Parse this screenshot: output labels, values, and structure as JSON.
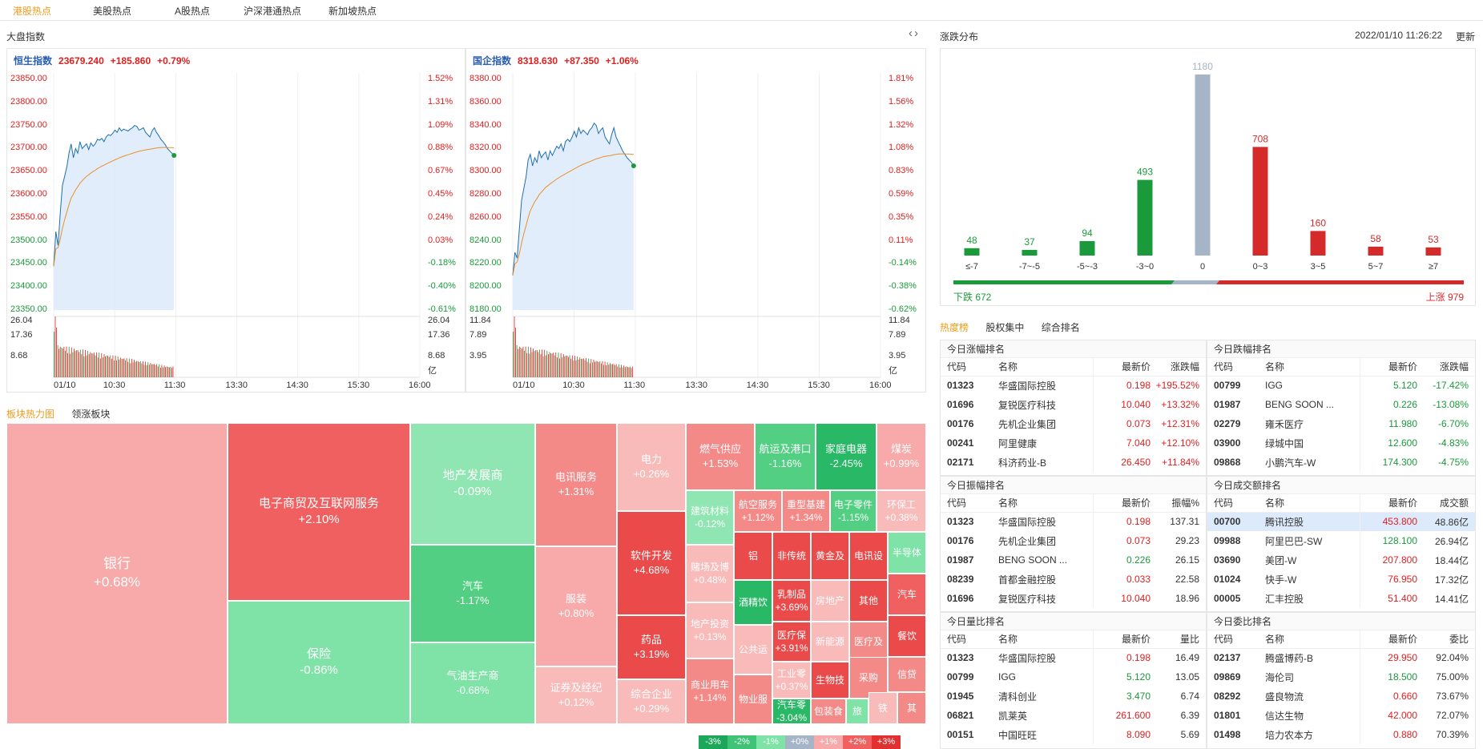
{
  "tabs": [
    "港股热点",
    "美股热点",
    "A股热点",
    "沪深港通热点",
    "新加坡热点"
  ],
  "market_title": "大盘指数",
  "indices": [
    {
      "name": "恒生指数",
      "value": "23679.240",
      "change": "+185.860",
      "pct": "+0.79%",
      "y_left": [
        "23850.00",
        "23800.00",
        "23750.00",
        "23700.00",
        "23650.00",
        "23600.00",
        "23550.00",
        "23500.00",
        "23450.00",
        "23400.00",
        "23350.00"
      ],
      "y_right": [
        "1.52%",
        "1.31%",
        "1.09%",
        "0.88%",
        "0.67%",
        "0.45%",
        "0.24%",
        "0.03%",
        "-0.18%",
        "-0.40%",
        "-0.61%"
      ],
      "vol_left": [
        "26.04",
        "17.36",
        "8.68"
      ],
      "vol_right": [
        "26.04",
        "17.36",
        "8.68",
        "亿"
      ],
      "x_labels": [
        "01/10",
        "10:30",
        "11:30",
        "13:30",
        "14:30",
        "15:30",
        "16:00"
      ],
      "series": [
        23445,
        23520,
        23490,
        23560,
        23620,
        23640,
        23660,
        23690,
        23710,
        23680,
        23700,
        23690,
        23715,
        23700,
        23705,
        23710,
        23698,
        23712,
        23705,
        23710,
        23720,
        23718,
        23722,
        23715,
        23725,
        23730,
        23728,
        23733,
        23740,
        23735,
        23745,
        23738,
        23742,
        23740,
        23738,
        23742,
        23745,
        23750,
        23748,
        23740,
        23742,
        23745,
        23735,
        23730,
        23725,
        23738,
        23745,
        23735,
        23728,
        23720,
        23715,
        23708,
        23700,
        23695,
        23690,
        23685
      ]
    },
    {
      "name": "国企指数",
      "value": "8318.630",
      "change": "+87.350",
      "pct": "+1.06%",
      "y_left": [
        "8380.00",
        "8360.00",
        "8340.00",
        "8320.00",
        "8300.00",
        "8280.00",
        "8260.00",
        "8240.00",
        "8220.00",
        "8200.00",
        "8180.00"
      ],
      "y_right": [
        "1.81%",
        "1.56%",
        "1.32%",
        "1.08%",
        "0.83%",
        "0.59%",
        "0.35%",
        "0.11%",
        "-0.14%",
        "-0.38%",
        "-0.62%"
      ],
      "vol_left": [
        "11.84",
        "7.89",
        "3.95"
      ],
      "vol_right": [
        "11.84",
        "7.89",
        "3.95",
        "亿"
      ],
      "x_labels": [
        "01/10",
        "10:30",
        "11:30",
        "13:30",
        "14:30",
        "15:30",
        "16:00"
      ],
      "series": [
        8210,
        8230,
        8225,
        8250,
        8275,
        8285,
        8295,
        8310,
        8315,
        8305,
        8312,
        8308,
        8318,
        8312,
        8315,
        8317,
        8310,
        8318,
        8314,
        8318,
        8322,
        8320,
        8324,
        8318,
        8326,
        8328,
        8326,
        8330,
        8335,
        8330,
        8338,
        8333,
        8336,
        8334,
        8332,
        8336,
        8338,
        8342,
        8340,
        8333,
        8336,
        8338,
        8330,
        8327,
        8324,
        8332,
        8338,
        8330,
        8326,
        8322,
        8318,
        8315,
        8312,
        8310,
        8308,
        8305
      ]
    }
  ],
  "distribution": {
    "title": "涨跌分布",
    "datetime": "2022/01/10 11:26:22",
    "refresh": "更新",
    "down_label": "下跌 672",
    "up_label": "上涨 979"
  },
  "chart_data": {
    "type": "bar",
    "title": "涨跌分布",
    "categories": [
      "≤-7",
      "-7~-5",
      "-5~-3",
      "-3~0",
      "0",
      "0~3",
      "3~5",
      "5~7",
      "≥7"
    ],
    "values": [
      48,
      37,
      94,
      493,
      1180,
      708,
      160,
      58,
      53
    ],
    "colors": [
      "#1a9a3a",
      "#1a9a3a",
      "#1a9a3a",
      "#1a9a3a",
      "#a6b4c8",
      "#d42a2a",
      "#d42a2a",
      "#d42a2a",
      "#d42a2a"
    ]
  },
  "hot_tabs": [
    "热度榜",
    "股权集中",
    "综合排名"
  ],
  "rankings": [
    {
      "title": "今日涨幅排名",
      "headers": [
        "代码",
        "名称",
        "最新价",
        "涨跌幅"
      ],
      "rows": [
        {
          "code": "01323",
          "name": "华盛国际控股",
          "price": "0.198",
          "val": "+195.52%",
          "dir": "up",
          "vdir": "up"
        },
        {
          "code": "01696",
          "name": "复锐医疗科技",
          "price": "10.040",
          "val": "+13.32%",
          "dir": "up",
          "vdir": "up"
        },
        {
          "code": "00176",
          "name": "先机企业集团",
          "price": "0.073",
          "val": "+12.31%",
          "dir": "up",
          "vdir": "up"
        },
        {
          "code": "00241",
          "name": "阿里健康",
          "price": "7.040",
          "val": "+12.10%",
          "dir": "up",
          "vdir": "up"
        },
        {
          "code": "02171",
          "name": "科济药业-B",
          "price": "26.450",
          "val": "+11.84%",
          "dir": "up",
          "vdir": "up"
        }
      ]
    },
    {
      "title": "今日跌幅排名",
      "headers": [
        "代码",
        "名称",
        "最新价",
        "涨跌幅"
      ],
      "rows": [
        {
          "code": "00799",
          "name": "IGG",
          "price": "5.120",
          "val": "-17.42%",
          "dir": "down",
          "vdir": "down"
        },
        {
          "code": "01987",
          "name": "BENG SOON ...",
          "price": "0.226",
          "val": "-13.08%",
          "dir": "down",
          "vdir": "down"
        },
        {
          "code": "02279",
          "name": "雍禾医疗",
          "price": "11.980",
          "val": "-6.70%",
          "dir": "down",
          "vdir": "down"
        },
        {
          "code": "03900",
          "name": "绿城中国",
          "price": "12.600",
          "val": "-4.83%",
          "dir": "down",
          "vdir": "down"
        },
        {
          "code": "09868",
          "name": "小鹏汽车-W",
          "price": "174.300",
          "val": "-4.75%",
          "dir": "down",
          "vdir": "down"
        }
      ]
    },
    {
      "title": "今日振幅排名",
      "headers": [
        "代码",
        "名称",
        "最新价",
        "振幅%"
      ],
      "rows": [
        {
          "code": "01323",
          "name": "华盛国际控股",
          "price": "0.198",
          "val": "137.31",
          "dir": "up",
          "vdir": "none"
        },
        {
          "code": "00176",
          "name": "先机企业集团",
          "price": "0.073",
          "val": "29.23",
          "dir": "up",
          "vdir": "none"
        },
        {
          "code": "01987",
          "name": "BENG SOON ...",
          "price": "0.226",
          "val": "26.15",
          "dir": "down",
          "vdir": "none"
        },
        {
          "code": "08239",
          "name": "首都金融控股",
          "price": "0.033",
          "val": "22.58",
          "dir": "up",
          "vdir": "none"
        },
        {
          "code": "01696",
          "name": "复锐医疗科技",
          "price": "10.040",
          "val": "18.96",
          "dir": "up",
          "vdir": "none"
        }
      ]
    },
    {
      "title": "今日成交额排名",
      "headers": [
        "代码",
        "名称",
        "最新价",
        "成交额"
      ],
      "rows": [
        {
          "code": "00700",
          "name": "腾讯控股",
          "price": "453.800",
          "val": "48.86亿",
          "dir": "up",
          "vdir": "none",
          "hl": true
        },
        {
          "code": "09988",
          "name": "阿里巴巴-SW",
          "price": "128.100",
          "val": "26.94亿",
          "dir": "down",
          "vdir": "none"
        },
        {
          "code": "03690",
          "name": "美团-W",
          "price": "207.800",
          "val": "18.44亿",
          "dir": "up",
          "vdir": "none"
        },
        {
          "code": "01024",
          "name": "快手-W",
          "price": "76.950",
          "val": "17.32亿",
          "dir": "up",
          "vdir": "none"
        },
        {
          "code": "00005",
          "name": "汇丰控股",
          "price": "51.400",
          "val": "14.41亿",
          "dir": "up",
          "vdir": "none"
        }
      ]
    },
    {
      "title": "今日量比排名",
      "headers": [
        "代码",
        "名称",
        "最新价",
        "量比"
      ],
      "rows": [
        {
          "code": "01323",
          "name": "华盛国际控股",
          "price": "0.198",
          "val": "16.49",
          "dir": "up",
          "vdir": "none"
        },
        {
          "code": "00799",
          "name": "IGG",
          "price": "5.120",
          "val": "13.05",
          "dir": "down",
          "vdir": "none"
        },
        {
          "code": "01945",
          "name": "清科创业",
          "price": "3.470",
          "val": "6.74",
          "dir": "down",
          "vdir": "none"
        },
        {
          "code": "06821",
          "name": "凯莱英",
          "price": "261.600",
          "val": "6.39",
          "dir": "up",
          "vdir": "none"
        },
        {
          "code": "00151",
          "name": "中国旺旺",
          "price": "8.090",
          "val": "5.69",
          "dir": "up",
          "vdir": "none"
        }
      ]
    },
    {
      "title": "今日委比排名",
      "headers": [
        "代码",
        "名称",
        "最新价",
        "委比"
      ],
      "rows": [
        {
          "code": "02137",
          "name": "腾盛博药-B",
          "price": "29.950",
          "val": "92.04%",
          "dir": "up",
          "vdir": "none"
        },
        {
          "code": "09869",
          "name": "海伦司",
          "price": "18.500",
          "val": "75.00%",
          "dir": "down",
          "vdir": "none"
        },
        {
          "code": "08292",
          "name": "盛良物流",
          "price": "0.660",
          "val": "73.67%",
          "dir": "up",
          "vdir": "none"
        },
        {
          "code": "01801",
          "name": "信达生物",
          "price": "42.000",
          "val": "72.07%",
          "dir": "up",
          "vdir": "none"
        },
        {
          "code": "01498",
          "name": "培力农本方",
          "price": "0.880",
          "val": "70.39%",
          "dir": "up",
          "vdir": "none"
        }
      ]
    }
  ],
  "sector_tabs": [
    "板块热力图",
    "领涨板块"
  ],
  "sectors": [
    {
      "name": "银行",
      "pct": "+0.68%",
      "color": "#f7aaa9"
    },
    {
      "name": "电子商贸及互联网服务",
      "pct": "+2.10%",
      "color": "#f06060"
    },
    {
      "name": "保险",
      "pct": "-0.86%",
      "color": "#7fe3a8"
    },
    {
      "name": "地产发展商",
      "pct": "-0.09%",
      "color": "#8fe6b2"
    },
    {
      "name": "汽车",
      "pct": "-1.17%",
      "color": "#52cf82"
    },
    {
      "name": "气油生产商",
      "pct": "-0.68%",
      "color": "#7fe3a8"
    },
    {
      "name": "电讯服务",
      "pct": "+1.31%",
      "color": "#f48a88"
    },
    {
      "name": "服装",
      "pct": "+0.80%",
      "color": "#f7aaa9"
    },
    {
      "name": "证券及经纪",
      "pct": "+0.12%",
      "color": "#f9baba"
    },
    {
      "name": "电力",
      "pct": "+0.26%",
      "color": "#f9baba"
    },
    {
      "name": "软件开发",
      "pct": "+4.68%",
      "color": "#ea4a4a"
    },
    {
      "name": "药品",
      "pct": "+3.19%",
      "color": "#ea4a4a"
    },
    {
      "name": "综合企业",
      "pct": "+0.29%",
      "color": "#f9baba"
    },
    {
      "name": "燃气供应",
      "pct": "+1.53%",
      "color": "#f48a88"
    },
    {
      "name": "航运及港口",
      "pct": "-1.16%",
      "color": "#52cf82"
    },
    {
      "name": "家庭电器",
      "pct": "-2.45%",
      "color": "#28b866"
    },
    {
      "name": "煤炭",
      "pct": "+0.99%",
      "color": "#f7aaa9"
    },
    {
      "name": "建筑材料",
      "pct": "-0.12%",
      "color": "#8fe6b2"
    },
    {
      "name": "航空服务",
      "pct": "+1.12%",
      "color": "#f48a88"
    },
    {
      "name": "重型基建",
      "pct": "+1.34%",
      "color": "#f48a88"
    },
    {
      "name": "电子零件",
      "pct": "-1.15%",
      "color": "#52cf82"
    },
    {
      "name": "环保工",
      "pct": "+0.38%",
      "color": "#f9baba"
    },
    {
      "name": "赌场及博",
      "pct": "+0.48%",
      "color": "#f9baba"
    },
    {
      "name": "地产投资",
      "pct": "+0.13%",
      "color": "#f9baba"
    },
    {
      "name": "商业用车",
      "pct": "+1.14%",
      "color": "#f48a88"
    },
    {
      "name": "铝",
      "pct": "",
      "color": "#ea4a4a"
    },
    {
      "name": "非传统",
      "pct": "",
      "color": "#ea4a4a"
    },
    {
      "name": "黄金及",
      "pct": "",
      "color": "#ea4a4a"
    },
    {
      "name": "电讯设",
      "pct": "",
      "color": "#ea4a4a"
    },
    {
      "name": "半导体",
      "pct": "",
      "color": "#7fe3a8"
    },
    {
      "name": "酒精饮",
      "pct": "",
      "color": "#28b866"
    },
    {
      "name": "乳制品",
      "pct": "+3.69%",
      "color": "#ea4a4a"
    },
    {
      "name": "房地产",
      "pct": "",
      "color": "#f9baba"
    },
    {
      "name": "其他",
      "pct": "",
      "color": "#ea4a4a"
    },
    {
      "name": "汽车",
      "pct": "",
      "color": "#f06060"
    },
    {
      "name": "公共运",
      "pct": "",
      "color": "#f9baba"
    },
    {
      "name": "医疗保",
      "pct": "+3.91%",
      "color": "#ea4a4a"
    },
    {
      "name": "新能源",
      "pct": "",
      "color": "#f9baba"
    },
    {
      "name": "医疗及",
      "pct": "",
      "color": "#f48a88"
    },
    {
      "name": "餐饮",
      "pct": "",
      "color": "#ea4a4a"
    },
    {
      "name": "工业零",
      "pct": "+0.37%",
      "color": "#f9baba"
    },
    {
      "name": "生物技",
      "pct": "",
      "color": "#ea4a4a"
    },
    {
      "name": "采购",
      "pct": "",
      "color": "#f48a88"
    },
    {
      "name": "信贷",
      "pct": "",
      "color": "#f48a88"
    },
    {
      "name": "物业服",
      "pct": "",
      "color": "#f48a88"
    },
    {
      "name": "汽车零",
      "pct": "-3.04%",
      "color": "#28b866"
    },
    {
      "name": "包装食",
      "pct": "",
      "color": "#f48a88"
    },
    {
      "name": "旅",
      "pct": "",
      "color": "#7fe3a8"
    },
    {
      "name": "铁",
      "pct": "",
      "color": "#f9baba"
    },
    {
      "name": "其",
      "pct": "",
      "color": "#f48a88"
    }
  ],
  "legend": [
    {
      "label": "-3%",
      "color": "#1da75a"
    },
    {
      "label": "-2%",
      "color": "#3ec377"
    },
    {
      "label": "-1%",
      "color": "#7fe3a8"
    },
    {
      "label": "+0%",
      "color": "#a6b4c8"
    },
    {
      "label": "+1%",
      "color": "#f7aaa9"
    },
    {
      "label": "+2%",
      "color": "#f06060"
    },
    {
      "label": "+3%",
      "color": "#e03030"
    }
  ]
}
